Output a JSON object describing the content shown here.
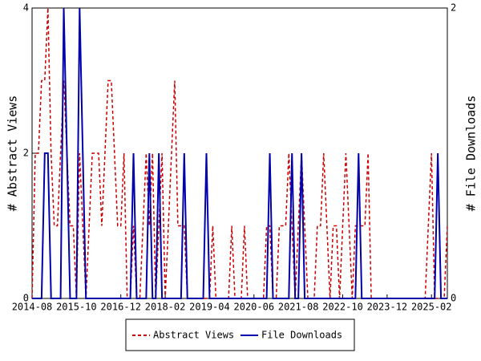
{
  "chart_data": {
    "type": "line",
    "categories": [
      "2014-08",
      null,
      null,
      null,
      null,
      null,
      null,
      null,
      null,
      null,
      null,
      null,
      null,
      null,
      "2015-10",
      null,
      null,
      null,
      null,
      null,
      null,
      null,
      null,
      null,
      null,
      null,
      null,
      null,
      "2016-12",
      null,
      null,
      null,
      null,
      null,
      null,
      null,
      null,
      null,
      null,
      null,
      null,
      null,
      "2018-02",
      null,
      null,
      null,
      null,
      null,
      null,
      null,
      null,
      null,
      null,
      null,
      null,
      null,
      "2019-04",
      null,
      null,
      null,
      null,
      null,
      null,
      null,
      null,
      null,
      null,
      null,
      null,
      null,
      "2020-06",
      null,
      null,
      null,
      null,
      null,
      null,
      null,
      null,
      null,
      null,
      null,
      null,
      null,
      "2021-08",
      null,
      null,
      null,
      null,
      null,
      null,
      null,
      null,
      null,
      null,
      null,
      null,
      null,
      "2022-10",
      null,
      null,
      null,
      null,
      null,
      null,
      null,
      null,
      null,
      null,
      null,
      null,
      null,
      "2023-12",
      null,
      null,
      null,
      null,
      null,
      null,
      null,
      null,
      null,
      null,
      null,
      null,
      null,
      "2025-02",
      null,
      null,
      null,
      null,
      null
    ],
    "y_label": "# Abstract Views",
    "y2_label": "# File Downloads",
    "ylim": [
      0,
      4
    ],
    "yticks": [
      0,
      2,
      4
    ],
    "y2lim": [
      0,
      2
    ],
    "y2ticks": [
      0,
      2
    ],
    "legend": "bottom",
    "series": [
      {
        "name": "Abstract Views",
        "color": "#cc0000",
        "dashed": true,
        "values": [
          0,
          2,
          2,
          3,
          3,
          4,
          2,
          1,
          1,
          2,
          3,
          2,
          1,
          1,
          0,
          2,
          1,
          0,
          1,
          2,
          2,
          2,
          1,
          2,
          3,
          3,
          2,
          1,
          1,
          2,
          0,
          0,
          1,
          0,
          0,
          1,
          2,
          1,
          2,
          0,
          1,
          2,
          0,
          1,
          2,
          3,
          1,
          1,
          1,
          0,
          0,
          0,
          0,
          0,
          0,
          0,
          0,
          1,
          0,
          0,
          0,
          0,
          0,
          1,
          0,
          0,
          0,
          1,
          0,
          0,
          0,
          0,
          0,
          0,
          1,
          1,
          0,
          0,
          1,
          1,
          1,
          2,
          1,
          0,
          1,
          2,
          1,
          0,
          0,
          0,
          1,
          1,
          2,
          1,
          0,
          1,
          1,
          0,
          1,
          2,
          1,
          0,
          1,
          1,
          1,
          1,
          2,
          0,
          0,
          0,
          0,
          0,
          0,
          0,
          0,
          0,
          0,
          0,
          0,
          0,
          0,
          0,
          0,
          0,
          0,
          1,
          2,
          0,
          0,
          0,
          0,
          1
        ]
      },
      {
        "name": "File Downloads",
        "color": "#0000aa",
        "dashed": false,
        "axis": "y2",
        "values": [
          0,
          0,
          0,
          0,
          1,
          1,
          0,
          0,
          0,
          0,
          2,
          1,
          0,
          0,
          0,
          2,
          1,
          0,
          0,
          0,
          0,
          0,
          0,
          0,
          0,
          0,
          0,
          0,
          0,
          0,
          0,
          0,
          1,
          0,
          0,
          0,
          0,
          1,
          0,
          0,
          1,
          0,
          0,
          0,
          0,
          0,
          0,
          0,
          1,
          0,
          0,
          0,
          0,
          0,
          0,
          1,
          0,
          0,
          0,
          0,
          0,
          0,
          0,
          0,
          0,
          0,
          0,
          0,
          0,
          0,
          0,
          0,
          0,
          0,
          0,
          1,
          0,
          0,
          0,
          0,
          0,
          0,
          1,
          0,
          0,
          1,
          0,
          0,
          0,
          0,
          0,
          0,
          0,
          0,
          0,
          0,
          0,
          0,
          0,
          0,
          0,
          0,
          0,
          1,
          0,
          0,
          0,
          0,
          0,
          0,
          0,
          0,
          0,
          0,
          0,
          0,
          0,
          0,
          0,
          0,
          0,
          0,
          0,
          0,
          0,
          0,
          0,
          0,
          1,
          0,
          0,
          0
        ]
      }
    ]
  }
}
